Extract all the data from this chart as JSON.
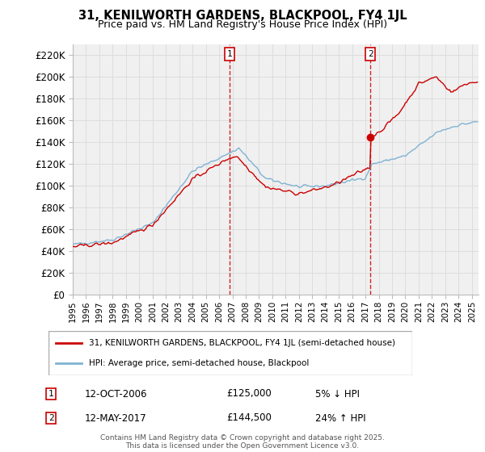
{
  "title": "31, KENILWORTH GARDENS, BLACKPOOL, FY4 1JL",
  "subtitle": "Price paid vs. HM Land Registry's House Price Index (HPI)",
  "ylabel_vals": [
    "£0",
    "£20K",
    "£40K",
    "£60K",
    "£80K",
    "£100K",
    "£120K",
    "£140K",
    "£160K",
    "£180K",
    "£200K",
    "£220K"
  ],
  "ylim": [
    0,
    230000
  ],
  "yticks": [
    0,
    20000,
    40000,
    60000,
    80000,
    100000,
    120000,
    140000,
    160000,
    180000,
    200000,
    220000
  ],
  "xlim_start": 1995.0,
  "xlim_end": 2025.5,
  "annotation1": {
    "x": 2006.79,
    "label": "1",
    "date": "12-OCT-2006",
    "price": "£125,000",
    "hpi_change": "5% ↓ HPI"
  },
  "annotation2": {
    "x": 2017.37,
    "label": "2",
    "date": "12-MAY-2017",
    "price": "£144,500",
    "hpi_change": "24% ↑ HPI"
  },
  "legend_line1": "31, KENILWORTH GARDENS, BLACKPOOL, FY4 1JL (semi-detached house)",
  "legend_line2": "HPI: Average price, semi-detached house, Blackpool",
  "footer": "Contains HM Land Registry data © Crown copyright and database right 2025.\nThis data is licensed under the Open Government Licence v3.0.",
  "line_color_red": "#cc0000",
  "line_color_blue": "#7fb3d3",
  "bg_color": "#f0f0f0",
  "grid_color": "#dddddd"
}
